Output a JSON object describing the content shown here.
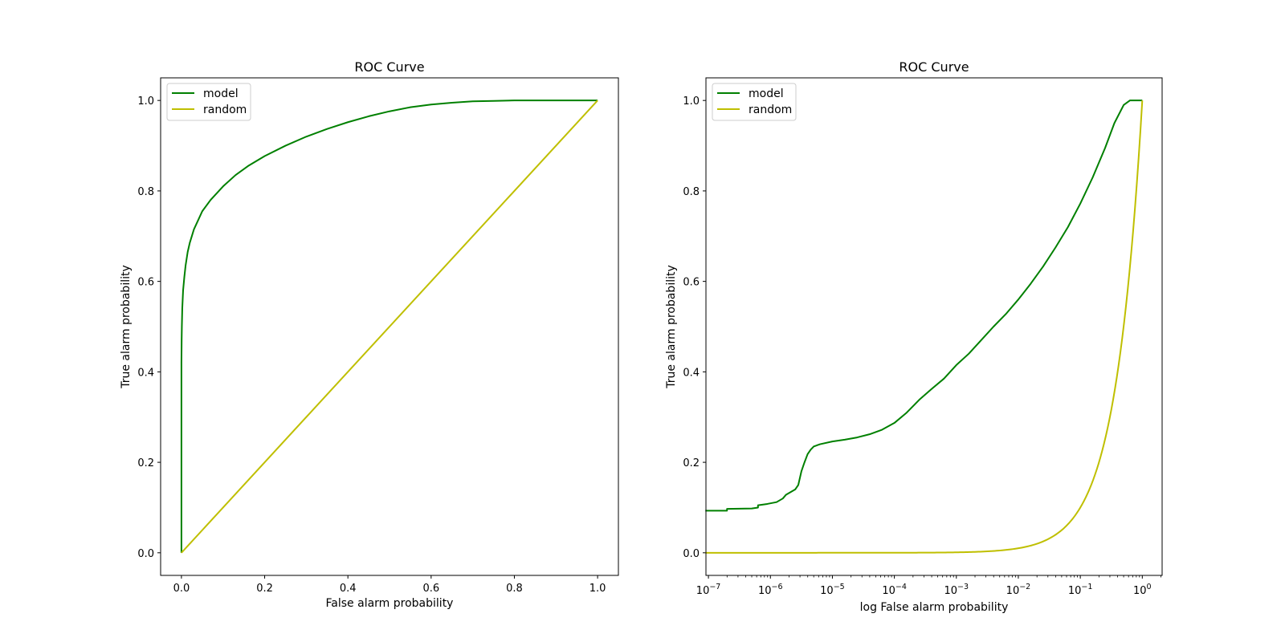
{
  "chart_data": [
    {
      "type": "line",
      "title": "ROC Curve",
      "xlabel": "False alarm probability",
      "ylabel": "True alarm probability",
      "xscale": "linear",
      "xlim": [
        -0.05,
        1.05
      ],
      "ylim": [
        -0.05,
        1.05
      ],
      "xticks": [
        0.0,
        0.2,
        0.4,
        0.6,
        0.8,
        1.0
      ],
      "xtick_labels": [
        "0.0",
        "0.2",
        "0.4",
        "0.6",
        "0.8",
        "1.0"
      ],
      "yticks": [
        0.0,
        0.2,
        0.4,
        0.6,
        0.8,
        1.0
      ],
      "ytick_labels": [
        "0.0",
        "0.2",
        "0.4",
        "0.6",
        "0.8",
        "1.0"
      ],
      "legend_position": "top-left",
      "series": [
        {
          "name": "model",
          "color": "#008000",
          "x": [
            0,
            0,
            0.0005,
            0.001,
            0.002,
            0.004,
            0.007,
            0.01,
            0.015,
            0.02,
            0.03,
            0.04,
            0.05,
            0.07,
            0.1,
            0.13,
            0.16,
            0.2,
            0.25,
            0.3,
            0.35,
            0.4,
            0.45,
            0.5,
            0.55,
            0.6,
            0.65,
            0.7,
            0.75,
            0.8,
            0.85,
            0.9,
            1.0
          ],
          "y": [
            0,
            0.42,
            0.47,
            0.5,
            0.54,
            0.58,
            0.61,
            0.635,
            0.665,
            0.685,
            0.715,
            0.735,
            0.755,
            0.78,
            0.81,
            0.835,
            0.855,
            0.877,
            0.9,
            0.92,
            0.937,
            0.952,
            0.965,
            0.976,
            0.985,
            0.991,
            0.995,
            0.998,
            0.999,
            1.0,
            1.0,
            1.0,
            1.0
          ]
        },
        {
          "name": "random",
          "color": "#bfbf00",
          "x": [
            0,
            1
          ],
          "y": [
            0,
            1
          ]
        }
      ]
    },
    {
      "type": "line",
      "title": "ROC Curve",
      "xlabel": "log False alarm probability",
      "ylabel": "True alarm probability",
      "xscale": "log",
      "xlim": [
        -7.04,
        0.32
      ],
      "ylim": [
        -0.05,
        1.05
      ],
      "xticks": [
        -7,
        -6,
        -5,
        -4,
        -3,
        -2,
        -1,
        0
      ],
      "xtick_labels": [
        {
          "base": "10",
          "exp": "−7"
        },
        {
          "base": "10",
          "exp": "−6"
        },
        {
          "base": "10",
          "exp": "−5"
        },
        {
          "base": "10",
          "exp": "−4"
        },
        {
          "base": "10",
          "exp": "−3"
        },
        {
          "base": "10",
          "exp": "−2"
        },
        {
          "base": "10",
          "exp": "−1"
        },
        {
          "base": "10",
          "exp": "0"
        }
      ],
      "yticks": [
        0.0,
        0.2,
        0.4,
        0.6,
        0.8,
        1.0
      ],
      "ytick_labels": [
        "0.0",
        "0.2",
        "0.4",
        "0.6",
        "0.8",
        "1.0"
      ],
      "legend_position": "top-left",
      "series": [
        {
          "name": "model",
          "color": "#008000",
          "log10x": [
            -7.05,
            -6.7,
            -6.7,
            -6.3,
            -6.2,
            -6.2,
            -6.05,
            -5.9,
            -5.8,
            -5.75,
            -5.6,
            -5.55,
            -5.5,
            -5.45,
            -5.4,
            -5.35,
            -5.3,
            -5.2,
            -5.0,
            -4.8,
            -4.6,
            -4.4,
            -4.2,
            -4.0,
            -3.8,
            -3.6,
            -3.4,
            -3.2,
            -3.0,
            -2.8,
            -2.6,
            -2.4,
            -2.2,
            -2.0,
            -1.8,
            -1.6,
            -1.4,
            -1.2,
            -1.0,
            -0.8,
            -0.6,
            -0.45,
            -0.3,
            -0.2,
            -0.1,
            0.0
          ],
          "y": [
            0.093,
            0.093,
            0.097,
            0.098,
            0.1,
            0.105,
            0.108,
            0.112,
            0.12,
            0.128,
            0.14,
            0.15,
            0.18,
            0.2,
            0.218,
            0.228,
            0.235,
            0.24,
            0.246,
            0.25,
            0.255,
            0.262,
            0.272,
            0.287,
            0.31,
            0.338,
            0.362,
            0.385,
            0.415,
            0.44,
            0.47,
            0.5,
            0.528,
            0.56,
            0.595,
            0.633,
            0.675,
            0.72,
            0.772,
            0.83,
            0.895,
            0.95,
            0.99,
            1.0,
            1.0,
            1.0
          ]
        },
        {
          "name": "random",
          "color": "#bfbf00",
          "equation": "y = x",
          "log10x_min": -7.05,
          "log10x_max": 0
        }
      ]
    }
  ]
}
